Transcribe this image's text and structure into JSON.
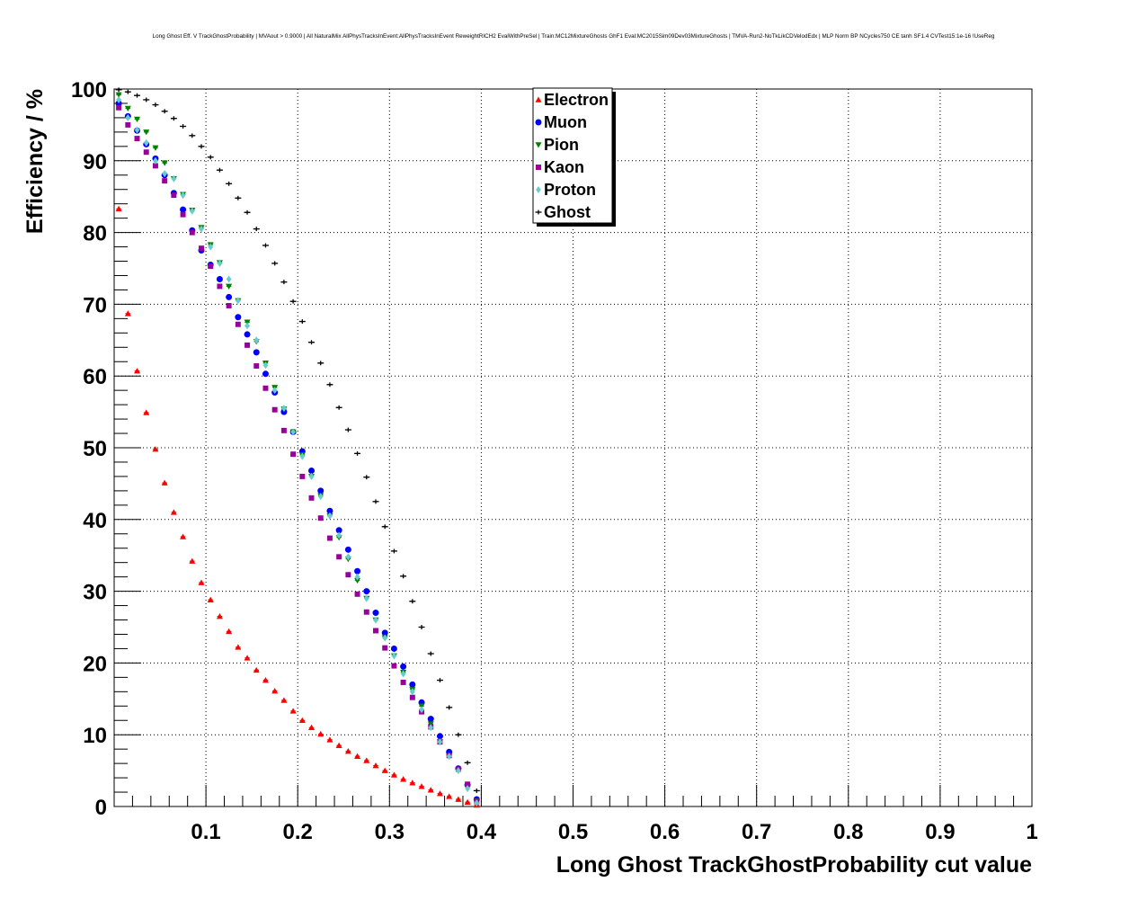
{
  "chart_data": {
    "type": "scatter",
    "title": "Long Ghost Eff. V TrackGhostProbability | MVAout > 0.9000 | All NaturalMix AllPhysTracksInEvent:AllPhysTracksInEvent ReweightRICH2 EvalWithPreSel | Train:MC12MixtureGhosts GhF1 Eval:MC2015Sim09Dev03MixtureGhosts | TMVA-Run2-NoTkLikCDVelodEdx | MLP Norm BP NCycles750 CE tanh SF1.4 CVTest15:1e-16 !UseReg",
    "xlabel": "Long Ghost TrackGhostProbability cut value",
    "ylabel": "Efficiency / %",
    "xlim": [
      0,
      1
    ],
    "ylim": [
      0,
      100
    ],
    "x_ticks": [
      0.1,
      0.2,
      0.3,
      0.4,
      0.5,
      0.6,
      0.7,
      0.8,
      0.9,
      1
    ],
    "x_tick_labels": [
      "0.1",
      "0.2",
      "0.3",
      "0.4",
      "0.5",
      "0.6",
      "0.7",
      "0.8",
      "0.9",
      "1"
    ],
    "y_ticks": [
      0,
      10,
      20,
      30,
      40,
      50,
      60,
      70,
      80,
      90,
      100
    ],
    "y_tick_labels": [
      "0",
      "10",
      "20",
      "30",
      "40",
      "50",
      "60",
      "70",
      "80",
      "90",
      "100"
    ],
    "grid": true,
    "legend_position": "top-center",
    "x": [
      0.005,
      0.015,
      0.025,
      0.035,
      0.045,
      0.055,
      0.065,
      0.075,
      0.085,
      0.095,
      0.105,
      0.115,
      0.125,
      0.135,
      0.145,
      0.155,
      0.165,
      0.175,
      0.185,
      0.195,
      0.205,
      0.215,
      0.225,
      0.235,
      0.245,
      0.255,
      0.265,
      0.275,
      0.285,
      0.295,
      0.305,
      0.315,
      0.325,
      0.335,
      0.345,
      0.355,
      0.365,
      0.375,
      0.385,
      0.395
    ],
    "series": [
      {
        "name": "Electron",
        "marker": "triangle-up",
        "color": "#ff0000",
        "values": [
          83.3,
          68.7,
          60.7,
          54.9,
          49.8,
          45.1,
          41.0,
          37.6,
          34.2,
          31.2,
          28.8,
          26.5,
          24.4,
          22.2,
          20.7,
          19.0,
          17.6,
          16.1,
          14.8,
          13.3,
          12.0,
          11.0,
          10.1,
          9.3,
          8.5,
          7.7,
          7.0,
          6.4,
          5.7,
          5.0,
          4.4,
          3.8,
          3.3,
          2.8,
          2.3,
          1.8,
          1.4,
          1.0,
          0.6,
          0.2
        ]
      },
      {
        "name": "Muon",
        "marker": "circle",
        "color": "#0000ff",
        "values": [
          98.0,
          96.2,
          94.2,
          92.3,
          90.3,
          88.0,
          85.5,
          83.2,
          80.3,
          77.5,
          75.5,
          73.5,
          71.0,
          68.2,
          65.8,
          63.3,
          60.3,
          57.7,
          55.0,
          52.2,
          49.5,
          46.8,
          44.0,
          41.2,
          38.5,
          35.8,
          32.8,
          30.0,
          27.0,
          24.2,
          22.0,
          19.5,
          17.0,
          14.5,
          12.2,
          9.8,
          7.6,
          5.3,
          3.0,
          1.0
        ]
      },
      {
        "name": "Pion",
        "marker": "triangle-down",
        "color": "#008000",
        "values": [
          99.2,
          97.3,
          95.8,
          94.0,
          91.8,
          89.7,
          87.5,
          85.3,
          83.1,
          80.7,
          78.3,
          75.8,
          72.5,
          70.5,
          67.5,
          64.8,
          61.8,
          58.4,
          55.4,
          52.2,
          49.0,
          46.0,
          43.3,
          40.5,
          37.5,
          34.5,
          31.5,
          29.0,
          26.0,
          23.5,
          21.0,
          18.7,
          16.3,
          14.0,
          11.5,
          9.0,
          7.0,
          5.0,
          2.8,
          0.8
        ]
      },
      {
        "name": "Kaon",
        "marker": "square",
        "color": "#990099",
        "values": [
          97.4,
          95.0,
          93.1,
          91.2,
          89.3,
          87.2,
          85.2,
          82.5,
          80.0,
          77.8,
          75.3,
          72.5,
          69.8,
          67.2,
          64.3,
          61.4,
          58.3,
          55.3,
          52.4,
          49.1,
          46.0,
          43.0,
          40.2,
          37.4,
          34.8,
          32.3,
          29.6,
          27.1,
          24.5,
          22.1,
          19.6,
          17.3,
          15.2,
          13.2,
          11.1,
          9.0,
          7.1,
          5.2,
          3.1,
          0.7
        ]
      },
      {
        "name": "Proton",
        "marker": "diamond",
        "color": "#66cccc",
        "values": [
          98.5,
          96.0,
          94.3,
          92.5,
          90.0,
          88.2,
          87.5,
          85.2,
          83.0,
          80.5,
          78.0,
          75.7,
          73.5,
          70.5,
          67.0,
          65.0,
          61.5,
          58.0,
          55.5,
          52.2,
          48.8,
          46.0,
          43.2,
          40.5,
          37.8,
          34.8,
          32.0,
          29.0,
          26.0,
          23.5,
          21.0,
          18.5,
          16.0,
          13.5,
          11.0,
          9.0,
          7.0,
          5.0,
          2.5,
          0.5
        ]
      },
      {
        "name": "Ghost",
        "marker": "cross",
        "color": "#000000",
        "values": [
          99.9,
          99.6,
          99.1,
          98.5,
          97.8,
          96.9,
          95.9,
          94.8,
          93.5,
          92.0,
          90.5,
          88.7,
          86.8,
          84.8,
          82.8,
          80.5,
          78.2,
          75.7,
          73.1,
          70.4,
          67.6,
          64.7,
          61.8,
          58.8,
          55.6,
          52.5,
          49.2,
          45.9,
          42.5,
          39.0,
          35.6,
          32.1,
          28.6,
          25.0,
          21.3,
          17.6,
          13.8,
          10.0,
          6.1,
          2.2
        ]
      }
    ]
  }
}
